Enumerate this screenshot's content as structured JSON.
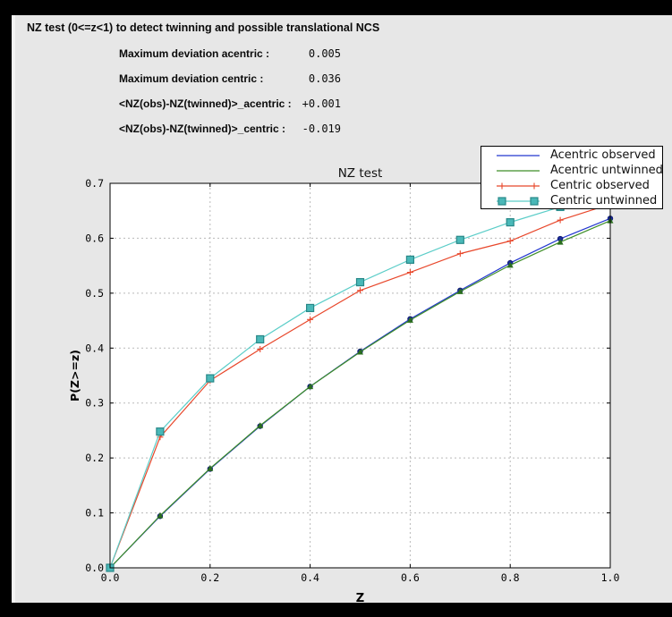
{
  "window": {
    "title": "NZ test (0<=z<1) to detect twinning and possible translational NCS",
    "stats": [
      {
        "label": "Maximum deviation acentric :",
        "value": "0.005"
      },
      {
        "label": "Maximum deviation centric :",
        "value": "0.036"
      },
      {
        "label": "<NZ(obs)-NZ(twinned)>_acentric :",
        "value": "+0.001"
      },
      {
        "label": "<NZ(obs)-NZ(twinned)>_centric :",
        "value": "-0.019"
      }
    ]
  },
  "chart_data": {
    "type": "line",
    "title": "NZ test",
    "xlabel": "Z",
    "ylabel": "P(Z>=z)",
    "xlim": [
      0.0,
      1.0
    ],
    "ylim": [
      0.0,
      0.7
    ],
    "grid": true,
    "legend_position": "upper right",
    "xticks": [
      {
        "v": 0.0,
        "label": "0.0"
      },
      {
        "v": 0.2,
        "label": "0.2"
      },
      {
        "v": 0.4,
        "label": "0.4"
      },
      {
        "v": 0.6,
        "label": "0.6"
      },
      {
        "v": 0.8,
        "label": "0.8"
      },
      {
        "v": 1.0,
        "label": "1.0"
      }
    ],
    "yticks": [
      {
        "v": 0.0,
        "label": "0.0"
      },
      {
        "v": 0.1,
        "label": "0.1"
      },
      {
        "v": 0.2,
        "label": "0.2"
      },
      {
        "v": 0.3,
        "label": "0.3"
      },
      {
        "v": 0.4,
        "label": "0.4"
      },
      {
        "v": 0.5,
        "label": "0.5"
      },
      {
        "v": 0.6,
        "label": "0.6"
      },
      {
        "v": 0.7,
        "label": "0.7"
      }
    ],
    "x": [
      0.0,
      0.1,
      0.2,
      0.3,
      0.4,
      0.5,
      0.6,
      0.7,
      0.8,
      0.9,
      1.0
    ],
    "series": [
      {
        "name": "Acentric observed",
        "color": "#2337cf",
        "marker": "circle",
        "marker_color": "#1a2a9e",
        "marker_edge": "#101c70",
        "values": [
          0.0,
          0.094,
          0.18,
          0.258,
          0.33,
          0.394,
          0.453,
          0.505,
          0.555,
          0.599,
          0.636
        ]
      },
      {
        "name": "Acentric untwinned",
        "color": "#3e8e28",
        "marker": "triangle",
        "marker_color": "#2a6e1e",
        "marker_edge": "#1d5414",
        "values": [
          0.0,
          0.095,
          0.181,
          0.259,
          0.33,
          0.393,
          0.451,
          0.503,
          0.551,
          0.593,
          0.632
        ]
      },
      {
        "name": "Centric observed",
        "color": "#e8472b",
        "marker": "plus",
        "marker_color": "#e8472b",
        "marker_edge": "#e8472b",
        "values": [
          0.0,
          0.238,
          0.341,
          0.398,
          0.452,
          0.505,
          0.538,
          0.572,
          0.595,
          0.633,
          0.662
        ]
      },
      {
        "name": "Centric untwinned",
        "color": "#5bcdc8",
        "marker": "square",
        "marker_color": "#4ab8b8",
        "marker_edge": "#288888",
        "values": [
          0.0,
          0.248,
          0.345,
          0.416,
          0.473,
          0.52,
          0.561,
          0.597,
          0.629,
          0.657,
          0.683
        ]
      }
    ]
  }
}
